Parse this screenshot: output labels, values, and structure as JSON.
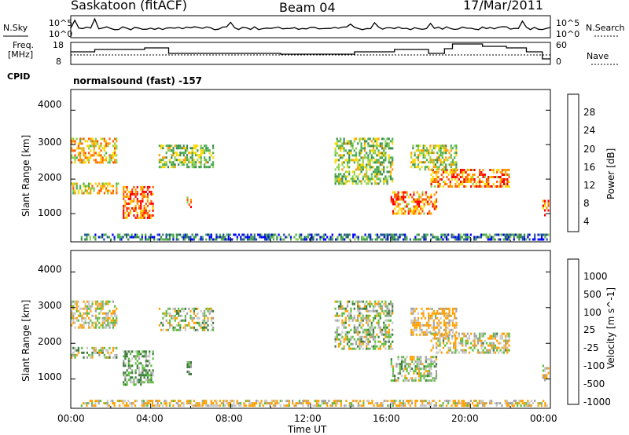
{
  "header": {
    "title": "Saskatoon (fitACF)",
    "beam": "Beam 04",
    "date": "17/Mar/2011"
  },
  "control_panel": {
    "nsky_label": "N.Sky",
    "nsky_ticks": [
      "10^5",
      "10^0"
    ],
    "nsearch_label": "N.Search",
    "freq_label_1": "Freq.",
    "freq_label_2": "[MHz]",
    "freq_ticks": [
      "18",
      "8"
    ],
    "nave_ticks": [
      "60",
      "0"
    ],
    "nave_label": "Nave",
    "cpid_label": "CPID",
    "cpid_value": "normalsound (fast) -157"
  },
  "colors": {
    "power_scale": [
      "#0000ff",
      "#1f4ea8",
      "#3c8c4a",
      "#4caf50",
      "#8fd14f",
      "#ffd700",
      "#ff9a00",
      "#ff5a00",
      "#ff0000"
    ],
    "velocity_scale": [
      "#1f3fc8",
      "#1f5aa0",
      "#3c7a3c",
      "#5cbf3c",
      "#a0a0a0",
      "#c8c8c8",
      "#ffa000",
      "#ff7a00",
      "#ff3a00",
      "#ff0000"
    ],
    "ground_scatter": "#b0b0b0"
  },
  "chart_data": [
    {
      "type": "heatmap",
      "name": "power",
      "xlabel": "Time UT",
      "ylabel": "Slant Range [km]",
      "colorbar_label": "Power [dB]",
      "colorbar_ticks": [
        "28",
        "24",
        "20",
        "16",
        "12",
        "8",
        "4"
      ],
      "x_ticks": [
        "00:00",
        "04:00",
        "08:00",
        "12:00",
        "16:00",
        "20:00",
        "00:00"
      ],
      "y_ticks": [
        "4000",
        "3000",
        "2000",
        "1000"
      ],
      "xlim": [
        0,
        24
      ],
      "ylim": [
        180,
        4600
      ],
      "grid": false,
      "regions": [
        {
          "t0": 0.0,
          "t1": 2.4,
          "r0": 2400,
          "r1": 3200,
          "power": 20
        },
        {
          "t0": 0.0,
          "t1": 2.5,
          "r0": 1550,
          "r1": 1900,
          "power": 18
        },
        {
          "t0": 2.6,
          "t1": 4.2,
          "r0": 800,
          "r1": 1800,
          "power": 26
        },
        {
          "t0": 4.4,
          "t1": 7.2,
          "r0": 2300,
          "r1": 3000,
          "power": 14
        },
        {
          "t0": 5.8,
          "t1": 6.1,
          "r0": 1100,
          "r1": 1500,
          "power": 22
        },
        {
          "t0": 0.5,
          "t1": 24.0,
          "r0": 200,
          "r1": 420,
          "power": 6
        },
        {
          "t0": 13.2,
          "t1": 16.2,
          "r0": 1800,
          "r1": 3200,
          "power": 14
        },
        {
          "t0": 16.0,
          "t1": 18.4,
          "r0": 900,
          "r1": 1650,
          "power": 24
        },
        {
          "t0": 18.0,
          "t1": 22.0,
          "r0": 1700,
          "r1": 2300,
          "power": 24
        },
        {
          "t0": 17.0,
          "t1": 19.4,
          "r0": 2200,
          "r1": 3000,
          "power": 16
        },
        {
          "t0": 23.6,
          "t1": 24.0,
          "r0": 900,
          "r1": 1400,
          "power": 26
        }
      ]
    },
    {
      "type": "heatmap",
      "name": "velocity",
      "xlabel": "Time UT",
      "ylabel": "Slant Range [km]",
      "colorbar_label": "Velocity [m s^-1]",
      "colorbar_ticks": [
        "1000",
        "500",
        "100",
        "25",
        "-25",
        "-100",
        "-500",
        "-1000"
      ],
      "x_ticks": [
        "00:00",
        "04:00",
        "08:00",
        "12:00",
        "16:00",
        "20:00",
        "00:00"
      ],
      "y_ticks": [
        "4000",
        "3000",
        "2000",
        "1000"
      ],
      "xlim": [
        0,
        24
      ],
      "ylim": [
        180,
        4600
      ],
      "grid": false,
      "regions": [
        {
          "t0": 0.0,
          "t1": 2.4,
          "r0": 2400,
          "r1": 3200,
          "vel": -50
        },
        {
          "t0": 0.0,
          "t1": 2.4,
          "r0": 1550,
          "r1": 1900,
          "vel": 0
        },
        {
          "t0": 2.6,
          "t1": 4.2,
          "r0": 800,
          "r1": 1800,
          "vel": 80
        },
        {
          "t0": 4.4,
          "t1": 7.2,
          "r0": 2300,
          "r1": 3000,
          "vel": 0
        },
        {
          "t0": 5.8,
          "t1": 6.1,
          "r0": 1100,
          "r1": 1500,
          "vel": 120
        },
        {
          "t0": 0.5,
          "t1": 24.0,
          "r0": 200,
          "r1": 420,
          "vel": -100
        },
        {
          "t0": 13.2,
          "t1": 16.2,
          "r0": 1800,
          "r1": 3200,
          "vel": 0
        },
        {
          "t0": 16.0,
          "t1": 18.4,
          "r0": 900,
          "r1": 1650,
          "vel": 0
        },
        {
          "t0": 18.0,
          "t1": 22.0,
          "r0": 1700,
          "r1": 2300,
          "vel": -40
        },
        {
          "t0": 17.0,
          "t1": 19.4,
          "r0": 2200,
          "r1": 3000,
          "vel": -120
        },
        {
          "t0": 23.6,
          "t1": 24.0,
          "r0": 900,
          "r1": 1400,
          "vel": -100
        }
      ]
    }
  ]
}
